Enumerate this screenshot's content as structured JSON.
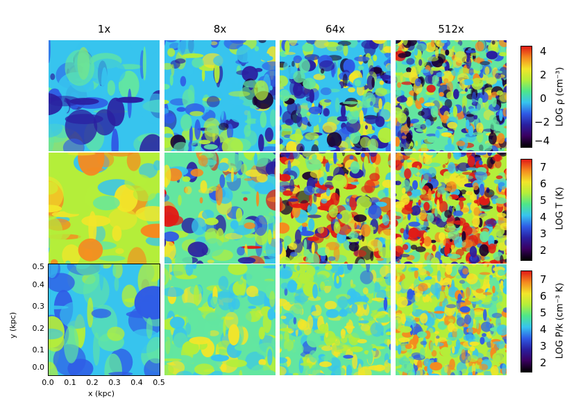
{
  "columns": [
    {
      "label": "1x"
    },
    {
      "label": "8x"
    },
    {
      "label": "64x"
    },
    {
      "label": "512x"
    }
  ],
  "rows": [
    {
      "quantity": "density",
      "colorbar_label": "LOG ρ (cm⁻³)",
      "colorbar_ticks": [
        "4",
        "2",
        "0",
        "−2",
        "−4"
      ]
    },
    {
      "quantity": "temperature",
      "colorbar_label": "LOG T (K)",
      "colorbar_ticks": [
        "7",
        "6",
        "5",
        "4",
        "3",
        "2"
      ]
    },
    {
      "quantity": "pressure",
      "colorbar_label": "LOG P/k (cm⁻³ K)",
      "colorbar_ticks": [
        "7",
        "6",
        "5",
        "4",
        "3",
        "2"
      ]
    }
  ],
  "axes": {
    "xlabel": "x (kpc)",
    "ylabel": "y (kpc)",
    "xticks": [
      "0.0",
      "0.1",
      "0.2",
      "0.3",
      "0.4",
      "0.5"
    ],
    "yticks": [
      "0.5",
      "0.4",
      "0.3",
      "0.2",
      "0.1",
      "0.0"
    ]
  },
  "colors": {
    "scale": [
      "#1a0030",
      "#2a1fa0",
      "#2f5be6",
      "#37c4ee",
      "#63e6a0",
      "#b4ee3a",
      "#f2e52a",
      "#f58a1f",
      "#e01b16"
    ]
  }
}
